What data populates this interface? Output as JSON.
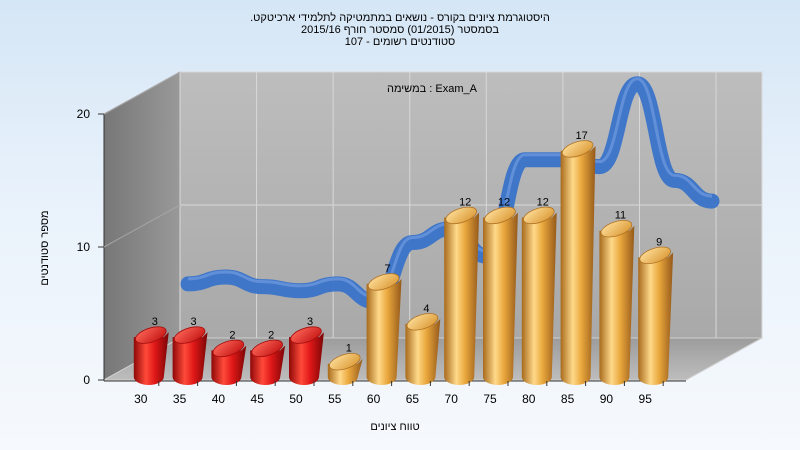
{
  "chart_data": {
    "type": "bar",
    "title_lines": [
      "היסטוגרמת ציונים בקורס - נושאים במתמטיקה לתלמידי ארכיטקט.",
      "בסמסטר  (01/2015)  סמסטר חורף  2015/16",
      "סטודנטים רשומים - 107"
    ],
    "exam_label": "Exam_A : במשימה",
    "xlabel": "טווח ציונים",
    "ylabel": "מספר סטודנטים",
    "ylim": [
      0,
      20
    ],
    "y_ticks": [
      "0",
      "10",
      "20"
    ],
    "categories": [
      "30",
      "35",
      "40",
      "45",
      "50",
      "55",
      "60",
      "65",
      "70",
      "75",
      "80",
      "85",
      "90",
      "95"
    ],
    "values": [
      3,
      3,
      2,
      2,
      3,
      1,
      7,
      4,
      12,
      12,
      12,
      17,
      11,
      9
    ],
    "value_labels": [
      "3",
      "3",
      "2",
      "2",
      "3",
      "1",
      "7",
      "4",
      "12",
      "12",
      "12",
      "17",
      "11",
      "9"
    ],
    "colors": {
      "below_pass": "#e01818",
      "pass": "#e9a73c",
      "trend": "#3a73c9",
      "wall": "#b3b3b3",
      "side_wall": "#8a8a8a",
      "floor": "#aaaaaa"
    },
    "below_pass_count": 5,
    "trend_values": [
      4.5,
      5.0,
      4.3,
      4.0,
      4.5,
      3.2,
      7.5,
      8.5,
      6.5,
      13.5,
      13.5,
      13.0,
      19.0,
      12.0,
      10.5
    ]
  }
}
